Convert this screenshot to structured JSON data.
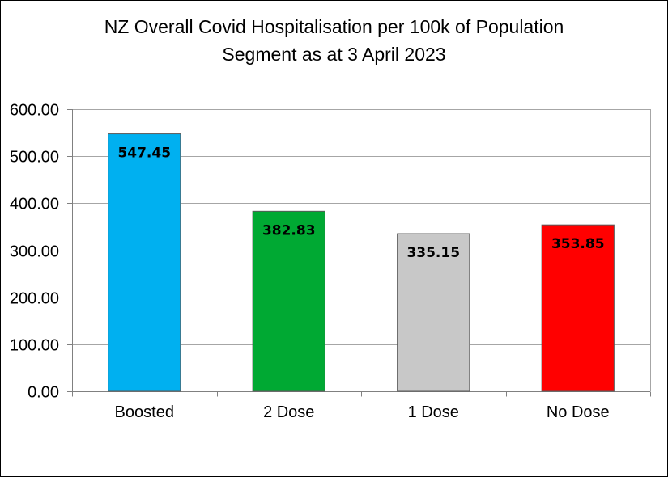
{
  "chart_data": {
    "type": "bar",
    "title_lines": [
      "NZ Overall Covid Hospitalisation per 100k of Population",
      "Segment as at 3 April 2023"
    ],
    "categories": [
      "Boosted",
      "2 Dose",
      "1 Dose",
      "No Dose"
    ],
    "values": [
      547.45,
      382.83,
      335.15,
      353.85
    ],
    "value_labels": [
      "547.45",
      "382.83",
      "335.15",
      "353.85"
    ],
    "colors": [
      "#00B0F0",
      "#00A933",
      "#C8C8C8",
      "#FF0000"
    ],
    "yticks": [
      "0.00",
      "100.00",
      "200.00",
      "300.00",
      "400.00",
      "500.00",
      "600.00"
    ],
    "ylim": [
      0,
      600
    ],
    "grid": true,
    "legend": "none",
    "xlabel": "",
    "ylabel": ""
  }
}
